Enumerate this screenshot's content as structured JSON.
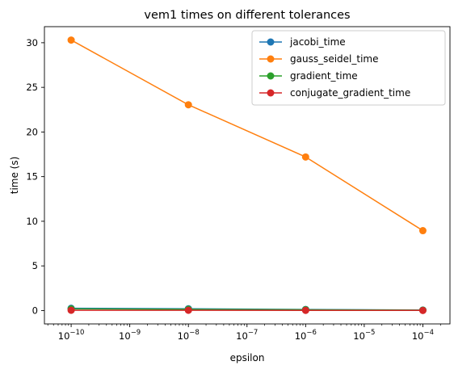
{
  "chart_data": {
    "type": "line",
    "title": "vem1 times on different tolerances",
    "xlabel": "epsilon",
    "ylabel": "time (s)",
    "x_scale": "log",
    "x": [
      1e-10,
      1e-08,
      1e-06,
      0.0001
    ],
    "xlim": [
      3.5e-11,
      0.00029
    ],
    "ylim": [
      -1.5,
      31.8
    ],
    "x_ticks": [
      {
        "value": 1e-10,
        "base": "10",
        "exp": "−10"
      },
      {
        "value": 1e-09,
        "base": "10",
        "exp": "−9"
      },
      {
        "value": 1e-08,
        "base": "10",
        "exp": "−8"
      },
      {
        "value": 1e-07,
        "base": "10",
        "exp": "−7"
      },
      {
        "value": 1e-06,
        "base": "10",
        "exp": "−6"
      },
      {
        "value": 1e-05,
        "base": "10",
        "exp": "−5"
      },
      {
        "value": 0.0001,
        "base": "10",
        "exp": "−4"
      }
    ],
    "y_ticks": [
      0,
      5,
      10,
      15,
      20,
      25,
      30
    ],
    "grid": false,
    "legend_position": "top-right",
    "series": [
      {
        "name": "jacobi_time",
        "color": "#1f77b4",
        "values": [
          0.25,
          0.2,
          0.12,
          0.05
        ]
      },
      {
        "name": "gauss_seidel_time",
        "color": "#ff7f0e",
        "values": [
          30.3,
          23.05,
          17.2,
          8.95
        ]
      },
      {
        "name": "gradient_time",
        "color": "#2ca02c",
        "values": [
          0.18,
          0.14,
          0.09,
          0.04
        ]
      },
      {
        "name": "conjugate_gradient_time",
        "color": "#d62728",
        "values": [
          0.03,
          0.03,
          0.02,
          0.01
        ]
      }
    ]
  }
}
